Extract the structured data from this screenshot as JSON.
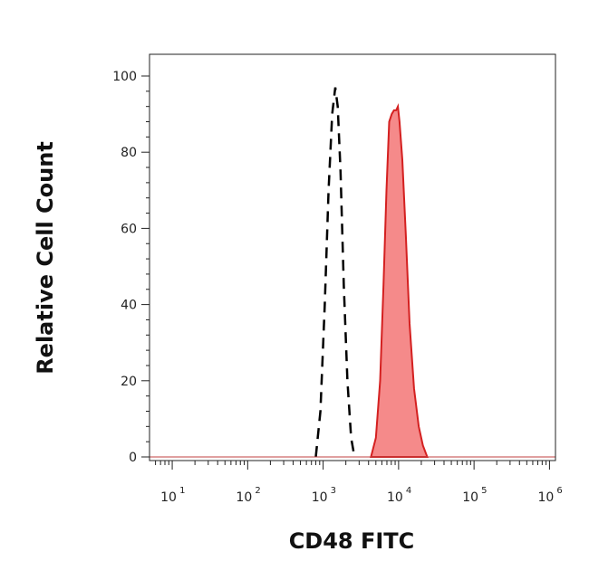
{
  "chart_data": {
    "type": "area",
    "xlabel": "CD48 FITC",
    "ylabel": "Relative Cell Count",
    "x_scale": "log",
    "xlim": [
      5,
      1200000
    ],
    "ylim": [
      0,
      100
    ],
    "x_ticks": [
      {
        "base": "10",
        "exp": "1",
        "value": 10
      },
      {
        "base": "10",
        "exp": "2",
        "value": 100
      },
      {
        "base": "10",
        "exp": "3",
        "value": 1000
      },
      {
        "base": "10",
        "exp": "4",
        "value": 10000
      },
      {
        "base": "10",
        "exp": "5",
        "value": 100000
      },
      {
        "base": "10",
        "exp": "6",
        "value": 1000000
      }
    ],
    "y_ticks": [
      "0",
      "20",
      "40",
      "60",
      "80",
      "100"
    ],
    "grid": false,
    "series": [
      {
        "style": "dashed",
        "color": "#000000",
        "points": [
          [
            800,
            0
          ],
          [
            920,
            12
          ],
          [
            1050,
            40
          ],
          [
            1180,
            70
          ],
          [
            1320,
            90
          ],
          [
            1450,
            97
          ],
          [
            1560,
            92
          ],
          [
            1700,
            75
          ],
          [
            1880,
            45
          ],
          [
            2100,
            20
          ],
          [
            2350,
            5
          ],
          [
            2600,
            0
          ]
        ]
      },
      {
        "style": "filled",
        "color": "#d42020",
        "fill": "#f58a8a",
        "points": [
          [
            4300,
            0
          ],
          [
            5000,
            5
          ],
          [
            5700,
            20
          ],
          [
            6300,
            45
          ],
          [
            6900,
            70
          ],
          [
            7500,
            88
          ],
          [
            8100,
            90
          ],
          [
            8700,
            91
          ],
          [
            9300,
            91
          ],
          [
            9800,
            92
          ],
          [
            10300,
            88
          ],
          [
            11200,
            78
          ],
          [
            12500,
            58
          ],
          [
            14000,
            35
          ],
          [
            16000,
            18
          ],
          [
            18500,
            8
          ],
          [
            21000,
            3
          ],
          [
            24000,
            0
          ]
        ]
      }
    ]
  }
}
